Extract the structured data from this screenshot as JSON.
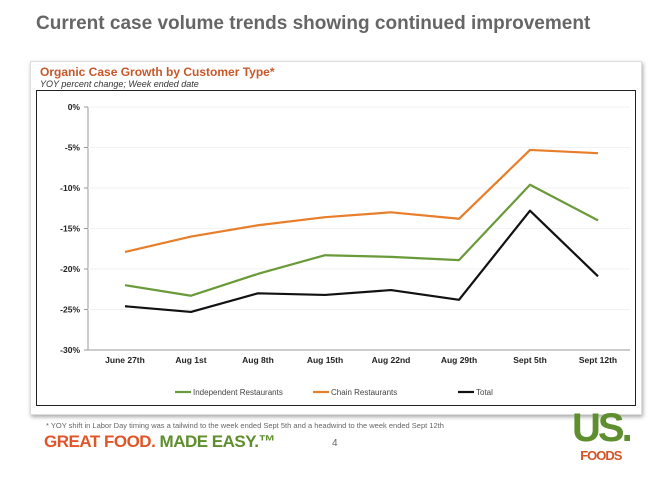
{
  "slide": {
    "title": "Current case volume trends showing continued improvement",
    "footnote": "* YOY shift in Labor Day timing was a tailwind to the week ended Sept 5th and a headwind to the week ended Sept 12th",
    "tagline_a": "GREAT FOOD.",
    "tagline_b": "MADE EASY.™",
    "page": "4",
    "logo_us": "US.",
    "logo_foods": "FOODS"
  },
  "colors": {
    "orange": "#e87d2a",
    "green": "#6a9a3a",
    "black": "#111111",
    "title_orange": "#c8582a"
  },
  "chart_data": {
    "type": "line",
    "title": "Organic Case Growth by Customer Type*",
    "subtitle": "YOY percent change; Week ended date",
    "categories": [
      "June 27th",
      "Aug 1st",
      "Aug 8th",
      "Aug 15th",
      "Aug 22nd",
      "Aug 29th",
      "Sept 5th",
      "Sept 12th"
    ],
    "ylim": [
      -30,
      0
    ],
    "yticks": [
      0,
      -5,
      -10,
      -15,
      -20,
      -25,
      -30
    ],
    "ytick_labels": [
      "0%",
      "-5%",
      "-10%",
      "-15%",
      "-20%",
      "-25%",
      "-30%"
    ],
    "legend_placement": "bottom",
    "series": [
      {
        "name": "Independent Restaurants",
        "color": "#6a9a3a",
        "values": [
          -22.0,
          -23.3,
          -20.6,
          -18.3,
          -18.5,
          -18.9,
          -9.6,
          -14.0
        ]
      },
      {
        "name": "Chain Restaurants",
        "color": "#e87d2a",
        "values": [
          -17.9,
          -16.0,
          -14.6,
          -13.6,
          -13.0,
          -13.8,
          -5.3,
          -5.7
        ]
      },
      {
        "name": "Total",
        "color": "#111111",
        "values": [
          -24.6,
          -25.3,
          -23.0,
          -23.2,
          -22.6,
          -23.8,
          -12.8,
          -20.9
        ]
      }
    ]
  }
}
